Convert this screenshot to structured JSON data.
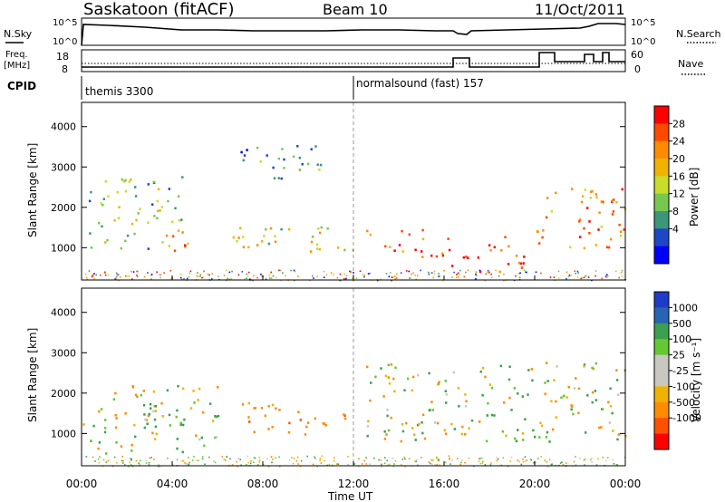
{
  "header": {
    "station": "Saskatoon (fitACF)",
    "beam": "Beam 10",
    "date": "11/Oct/2011"
  },
  "top_panels": {
    "nsky_label": "N.Sky",
    "nsearch_label": "N.Search",
    "left_ticks_top": [
      "10^5",
      "10^0"
    ],
    "right_ticks_top": [
      "10^5",
      "10^0"
    ],
    "freq_label_1": "Freq.",
    "freq_label_2": "[MHz]",
    "freq_ticks": [
      "18",
      "8"
    ],
    "nave_ticks": [
      "60",
      "0"
    ],
    "nave_label": "Nave",
    "cpid_label": "CPID",
    "cpid_1": "themis 3300",
    "cpid_2": "normalsound (fast) 157"
  },
  "power_panel": {
    "ylabel": "Slant Range [km]",
    "yticks": [
      "4000",
      "3000",
      "2000",
      "1000"
    ],
    "colorbar_label": "Power [dB]",
    "colorbar_ticks": [
      "28",
      "24",
      "20",
      "16",
      "12",
      "8",
      "4"
    ],
    "colors": [
      "#ff0000",
      "#ff4800",
      "#ff8c00",
      "#f0b400",
      "#c8dc28",
      "#78c850",
      "#3c9678",
      "#1e46c8",
      "#0000ff"
    ]
  },
  "velocity_panel": {
    "ylabel": "Slant Range [km]",
    "yticks": [
      "4000",
      "3000",
      "2000",
      "1000"
    ],
    "colorbar_label": "Velocity [m s⁻¹]",
    "colorbar_ticks": [
      "1000",
      "500",
      "100",
      "25",
      "-25",
      "-100",
      "-500",
      "-1000"
    ],
    "colors": [
      "#1e3cc8",
      "#2864b4",
      "#3ca050",
      "#64c832",
      "#c8c8c0",
      "#c8c8c0",
      "#f0b400",
      "#ff8c00",
      "#ff5000",
      "#ff0000"
    ]
  },
  "xaxis": {
    "ticks": [
      "00:00",
      "04:00",
      "08:00",
      "12:00",
      "16:00",
      "20:00",
      "00:00"
    ],
    "label": "Time UT"
  },
  "chart_data": {
    "type": "heatmap",
    "title": "Saskatoon (fitACF) Beam 10 11/Oct/2011",
    "xlabel": "Time UT",
    "ylabel": "Slant Range [km]",
    "xlim_hours": [
      0,
      24
    ],
    "ylim": [
      200,
      4600
    ],
    "panels": [
      {
        "name": "Power",
        "unit": "dB",
        "colorbar_range": [
          0,
          30
        ],
        "scatter_regions": [
          {
            "t_start": 0.3,
            "t_end": 4.8,
            "range_start": 1000,
            "range_end": 2800,
            "value": 12
          },
          {
            "t_start": 3.6,
            "t_end": 4.8,
            "range_start": 900,
            "range_end": 1600,
            "value": 28
          },
          {
            "t_start": 6.0,
            "t_end": 12.0,
            "range_start": 900,
            "range_end": 1600,
            "value": 16
          },
          {
            "t_start": 7.0,
            "t_end": 11.0,
            "range_start": 2700,
            "range_end": 3600,
            "value": 8
          },
          {
            "t_start": 12.5,
            "t_end": 16.0,
            "range_start": 800,
            "range_end": 1500,
            "value": 24
          },
          {
            "t_start": 16.0,
            "t_end": 19.5,
            "range_start": 400,
            "range_end": 1300,
            "value": 26
          },
          {
            "t_start": 19.5,
            "t_end": 24.0,
            "range_start": 1000,
            "range_end": 2500,
            "value": 22
          }
        ]
      },
      {
        "name": "Velocity",
        "unit": "m s-1",
        "colorbar_range": [
          -1000,
          1000
        ],
        "scatter_regions": [
          {
            "t_start": 0.0,
            "t_end": 6.0,
            "range_start": 500,
            "range_end": 2200,
            "value": 0
          },
          {
            "t_start": 2.5,
            "t_end": 4.5,
            "range_start": 1000,
            "range_end": 1800,
            "value": 200
          },
          {
            "t_start": 7.0,
            "t_end": 12.0,
            "range_start": 1000,
            "range_end": 1800,
            "value": -300
          },
          {
            "t_start": 12.5,
            "t_end": 24.0,
            "range_start": 800,
            "range_end": 2800,
            "value": 0
          }
        ]
      }
    ],
    "cpid_changes": [
      {
        "time": "00:00",
        "program": "themis",
        "id": 3300
      },
      {
        "time": "12:00",
        "program": "normalsound (fast)",
        "id": 157
      }
    ]
  }
}
